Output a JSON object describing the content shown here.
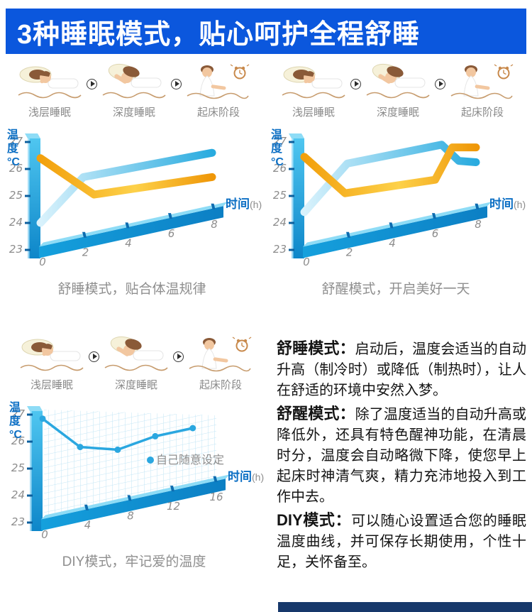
{
  "banner": {
    "title": "3种睡眠模式，贴心呵护全程舒睡",
    "bg_color": "#0b57dd",
    "text_color": "#ffffff"
  },
  "sleep_stages": {
    "labels": [
      "浅层睡眠",
      "深度睡眠",
      "起床阶段"
    ]
  },
  "panels": [
    {
      "caption": "舒睡模式，贴合体温规律"
    },
    {
      "caption": "舒醒模式，开启美好一天"
    },
    {
      "caption": "DIY模式，牢记爱的温度"
    }
  ],
  "descriptions": [
    {
      "title": "舒睡模式：",
      "body": "启动后，温度会适当的自动升高（制冷时）或降低（制热时），让人在舒适的环境中安然入梦。"
    },
    {
      "title": "舒醒模式：",
      "body": "除了温度适当的自动升高或降低外，还具有特色醒神功能，在清晨时分，温度会自动略微下降，使您早上起床时神清气爽，精力充沛地投入到工作中去。"
    },
    {
      "title": "DIY模式：",
      "body": "可以随心设置适合您的睡眠温度曲线，并可保存长期使用，个性十足，关怀备至。"
    }
  ],
  "colors": {
    "banner_blue": "#0b57dd",
    "axis_label_blue": "#0c6fc4",
    "tick_gray": "#8d8d8d",
    "caption_gray": "#8f8f8f",
    "ribbon_blue_start": "#d9f2fc",
    "ribbon_blue_end": "#29abdf",
    "ribbon_orange": "#f2a00c",
    "dot_line_blue": "#2aa7e0",
    "footer_bar_navy": "#17386b"
  },
  "chart_data": [
    {
      "type": "line",
      "style": "ribbon3d",
      "title": "舒睡模式，贴合体温规律",
      "xlabel": "时间",
      "xlabel_unit": "(h)",
      "ylabel": "温度°C",
      "ylabel_chars": [
        "温",
        "度",
        "°C"
      ],
      "x_ticks": [
        0,
        2,
        4,
        6,
        8
      ],
      "y_ticks": [
        23,
        24,
        25,
        26,
        27
      ],
      "xlim": [
        0,
        8
      ],
      "ylim": [
        23,
        27
      ],
      "grid": false,
      "legend": null,
      "series": [
        {
          "color": "blue",
          "points": [
            [
              0,
              24.0
            ],
            [
              2,
              25.7
            ],
            [
              8,
              26.6
            ]
          ]
        },
        {
          "color": "orange",
          "points": [
            [
              0,
              26.4
            ],
            [
              2.5,
              25.05
            ],
            [
              8,
              25.7
            ]
          ]
        }
      ]
    },
    {
      "type": "line",
      "style": "ribbon3d",
      "title": "舒醒模式，开启美好一天",
      "xlabel": "时间",
      "xlabel_unit": "(h)",
      "ylabel": "温度°C",
      "ylabel_chars": [
        "温",
        "度",
        "°C"
      ],
      "x_ticks": [
        0,
        2,
        4,
        6,
        8
      ],
      "y_ticks": [
        23,
        24,
        25,
        26,
        27
      ],
      "xlim": [
        0,
        8
      ],
      "ylim": [
        23,
        27
      ],
      "grid": false,
      "legend": null,
      "series": [
        {
          "color": "blue",
          "points": [
            [
              0,
              24.4
            ],
            [
              2,
              26.2
            ],
            [
              6.4,
              26.9
            ],
            [
              7.2,
              26.3
            ],
            [
              8,
              26.25
            ]
          ]
        },
        {
          "color": "orange",
          "points": [
            [
              0,
              26.45
            ],
            [
              1.9,
              25.1
            ],
            [
              6.1,
              25.6
            ],
            [
              6.9,
              26.8
            ],
            [
              8,
              26.8
            ]
          ]
        }
      ]
    },
    {
      "type": "line",
      "style": "dotline",
      "title": "DIY模式，牢记爱的温度",
      "xlabel": "时间",
      "xlabel_unit": "(h)",
      "ylabel": "温度°C",
      "ylabel_chars": [
        "温",
        "度",
        "°C"
      ],
      "x_ticks": [
        0,
        4,
        8,
        12,
        16
      ],
      "y_ticks": [
        23,
        24,
        25,
        26,
        27
      ],
      "xlim": [
        0,
        16
      ],
      "ylim": [
        23,
        27
      ],
      "grid": true,
      "legend": "自己随意设定",
      "series": [
        {
          "color": "dot",
          "points": [
            [
              0,
              26.85
            ],
            [
              3.5,
              25.8
            ],
            [
              7,
              25.7
            ],
            [
              10.5,
              26.2
            ],
            [
              14,
              26.5
            ]
          ]
        }
      ]
    }
  ]
}
